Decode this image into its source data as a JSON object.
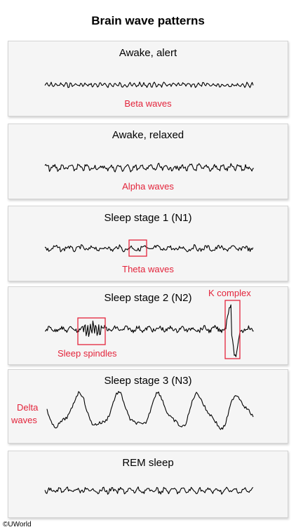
{
  "title": "Brain wave patterns",
  "panels": [
    {
      "title": "Awake, alert",
      "wave_label": "Beta waves"
    },
    {
      "title": "Awake, relaxed",
      "wave_label": "Alpha waves"
    },
    {
      "title": "Sleep stage 1 (N1)",
      "wave_label": "Theta waves"
    },
    {
      "title": "Sleep stage 2 (N2)",
      "wave_label": "Sleep spindles",
      "extra_label": "K complex"
    },
    {
      "title": "Sleep stage 3 (N3)",
      "wave_label_line1": "Delta",
      "wave_label_line2": "waves"
    },
    {
      "title": "REM sleep"
    }
  ],
  "copyright": "©UWorld",
  "colors": {
    "label": "#e3243b",
    "panel_bg": "#f5f5f5",
    "wave": "#000000"
  }
}
